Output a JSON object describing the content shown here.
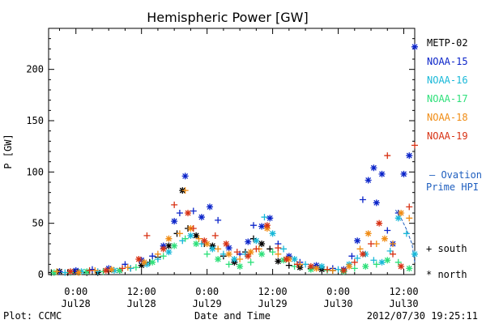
{
  "chart_data": {
    "type": "scatter",
    "title": "Hemispheric Power [GW]",
    "xlabel": "Date and Time",
    "ylabel": "P [GW]",
    "xlim": [
      -5,
      62
    ],
    "ylim": [
      0,
      240
    ],
    "yticks": [
      0,
      50,
      100,
      150,
      200
    ],
    "xticks": [
      {
        "x": 0,
        "time": "0:00",
        "date": "Jul28"
      },
      {
        "x": 12,
        "time": "12:00",
        "date": "Jul28"
      },
      {
        "x": 24,
        "time": "0:00",
        "date": "Jul29"
      },
      {
        "x": 36,
        "time": "12:00",
        "date": "Jul29"
      },
      {
        "x": 48,
        "time": "0:00",
        "date": "Jul30"
      },
      {
        "x": 60,
        "time": "12:00",
        "date": "Jul30"
      }
    ],
    "footer_left": "Plot: CCMC",
    "footer_right": "2012/07/30 19:25:11",
    "marker_legend": [
      {
        "symbol": "+",
        "label": "south"
      },
      {
        "symbol": "*",
        "label": "north"
      }
    ],
    "ovation": {
      "label_line1": "— Ovation",
      "label_line2": "Prime HPI",
      "color": "#1f5fbf",
      "x": [
        58.5,
        59.5,
        60.5,
        61.5,
        62.0
      ],
      "y": [
        63,
        55,
        44,
        30,
        12
      ]
    },
    "series": [
      {
        "name": "METP-02",
        "color": "#000000",
        "x": [
          -4.5,
          -3,
          -1.5,
          0,
          2,
          4,
          6,
          8,
          10,
          12,
          13.5,
          15,
          17,
          18.5,
          19.5,
          20.5,
          22,
          23.5,
          25,
          27,
          29,
          31,
          32.5,
          34,
          35.5,
          37,
          39,
          41,
          43,
          45,
          47,
          49
        ],
        "y": [
          2,
          3,
          2,
          3,
          2,
          2,
          3,
          4,
          6,
          9,
          12,
          17,
          28,
          40,
          82,
          45,
          38,
          30,
          28,
          18,
          12,
          22,
          35,
          30,
          25,
          13,
          9,
          7,
          6,
          5,
          4,
          3
        ],
        "m": [
          "+",
          "*",
          "+",
          "*",
          "+",
          "*",
          "+",
          "*",
          "+",
          "*",
          "+",
          "+",
          "*",
          "+",
          "*",
          "+",
          "*",
          "+",
          "*",
          "+",
          "*",
          "+",
          "+",
          "*",
          "+",
          "*",
          "+",
          "*",
          "+",
          "*",
          "+",
          "*"
        ]
      },
      {
        "name": "NOAA-15",
        "color": "#0b24c9",
        "x": [
          -3,
          0,
          3,
          6,
          9,
          12,
          14,
          16,
          18,
          19,
          20,
          21.5,
          23,
          24.5,
          26,
          28,
          30,
          31.5,
          32.5,
          34,
          35.5,
          37,
          39,
          41,
          44,
          47,
          49,
          50.5,
          51.5,
          52.5,
          53.5,
          54.5,
          55,
          56,
          57,
          58,
          59,
          60,
          61,
          62
        ],
        "y": [
          3,
          4,
          5,
          6,
          10,
          14,
          18,
          28,
          52,
          60,
          96,
          62,
          56,
          66,
          53,
          26,
          20,
          32,
          48,
          47,
          55,
          30,
          18,
          12,
          9,
          6,
          5,
          18,
          33,
          73,
          92,
          104,
          70,
          98,
          43,
          30,
          60,
          98,
          116,
          222
        ],
        "m": [
          "+",
          "*",
          "+",
          "*",
          "+",
          "*",
          "+",
          "*",
          "*",
          "+",
          "*",
          "+",
          "*",
          "*",
          "+",
          "*",
          "+",
          "*",
          "+",
          "*",
          "*",
          "+",
          "*",
          "+",
          "*",
          "+",
          "*",
          "+",
          "*",
          "+",
          "*",
          "*",
          "*",
          "*",
          "+",
          "*",
          "+",
          "*",
          "*",
          "*"
        ]
      },
      {
        "name": "NOAA-16",
        "color": "#18b8d8",
        "x": [
          -2,
          1,
          4,
          7,
          10,
          13,
          15,
          17,
          19.5,
          21,
          23,
          25,
          27,
          29,
          31,
          33,
          34.5,
          36,
          38,
          40,
          42,
          45,
          48,
          50,
          51.5,
          53,
          54.5,
          56,
          57.5,
          59,
          60.5,
          62
        ],
        "y": [
          2,
          3,
          3,
          4,
          6,
          10,
          15,
          22,
          33,
          38,
          30,
          25,
          20,
          15,
          20,
          33,
          56,
          40,
          25,
          15,
          10,
          8,
          5,
          10,
          16,
          20,
          14,
          12,
          23,
          55,
          40,
          20
        ],
        "m": [
          "+",
          "*",
          "+",
          "*",
          "+",
          "*",
          "+",
          "*",
          "+",
          "*",
          "+",
          "*",
          "+",
          "*",
          "+",
          "*",
          "+",
          "*",
          "+",
          "*",
          "+",
          "*",
          "+",
          "*",
          "+",
          "*",
          "+",
          "*",
          "+",
          "*",
          "+",
          "*"
        ]
      },
      {
        "name": "NOAA-17",
        "color": "#2ee07a",
        "x": [
          -4,
          -1,
          2,
          5,
          8,
          11,
          14,
          16,
          18,
          20,
          22,
          24,
          26,
          28,
          30,
          32,
          34,
          36,
          38,
          40,
          43,
          46,
          49,
          51,
          53,
          55,
          57,
          59,
          61
        ],
        "y": [
          2,
          2,
          3,
          3,
          4,
          7,
          12,
          18,
          28,
          35,
          30,
          20,
          15,
          10,
          8,
          12,
          20,
          22,
          14,
          8,
          5,
          4,
          3,
          6,
          8,
          10,
          14,
          12,
          6
        ],
        "m": [
          "*",
          "+",
          "*",
          "+",
          "*",
          "+",
          "*",
          "+",
          "*",
          "+",
          "*",
          "+",
          "*",
          "+",
          "*",
          "+",
          "*",
          "+",
          "*",
          "+",
          "*",
          "+",
          "*",
          "+",
          "*",
          "+",
          "*",
          "+",
          "*"
        ]
      },
      {
        "name": "NOAA-18",
        "color": "#f08c14",
        "x": [
          -3.5,
          0.5,
          3.5,
          6.5,
          9.5,
          12.5,
          15,
          17,
          19,
          20,
          21,
          22.5,
          24,
          26,
          28,
          30,
          32,
          33.5,
          35,
          37,
          39,
          41,
          44,
          47,
          50,
          52,
          53.5,
          55,
          56.5,
          58,
          59.5,
          61
        ],
        "y": [
          3,
          2,
          4,
          5,
          7,
          12,
          20,
          35,
          40,
          82,
          45,
          35,
          30,
          25,
          20,
          15,
          22,
          25,
          45,
          20,
          15,
          10,
          6,
          4,
          8,
          25,
          40,
          30,
          35,
          30,
          60,
          55
        ],
        "m": [
          "+",
          "*",
          "+",
          "*",
          "+",
          "*",
          "+",
          "*",
          "+",
          "+",
          "*",
          "+",
          "*",
          "+",
          "*",
          "+",
          "*",
          "+",
          "*",
          "+",
          "*",
          "+",
          "*",
          "+",
          "*",
          "+",
          "*",
          "+",
          "*",
          "+",
          "*",
          "+"
        ]
      },
      {
        "name": "NOAA-19",
        "color": "#d83214",
        "x": [
          -1,
          2.5,
          5.5,
          8.5,
          11.5,
          13,
          16,
          18,
          20.5,
          21.5,
          23.5,
          25.5,
          27.5,
          29.5,
          31.5,
          33,
          35,
          37,
          38.5,
          40.5,
          43,
          46,
          49,
          51,
          52.5,
          54,
          55.5,
          57,
          58,
          59.5,
          61,
          62
        ],
        "y": [
          3,
          4,
          4,
          6,
          15,
          38,
          25,
          68,
          60,
          45,
          33,
          38,
          30,
          22,
          18,
          25,
          48,
          26,
          15,
          10,
          8,
          5,
          4,
          12,
          20,
          30,
          50,
          116,
          20,
          8,
          66,
          126
        ],
        "m": [
          "*",
          "+",
          "*",
          "+",
          "*",
          "+",
          "*",
          "+",
          "*",
          "+",
          "*",
          "+",
          "*",
          "+",
          "*",
          "+",
          "*",
          "+",
          "*",
          "+",
          "*",
          "+",
          "*",
          "+",
          "*",
          "+",
          "*",
          "+",
          "+",
          "*",
          "+",
          "+"
        ]
      }
    ]
  }
}
